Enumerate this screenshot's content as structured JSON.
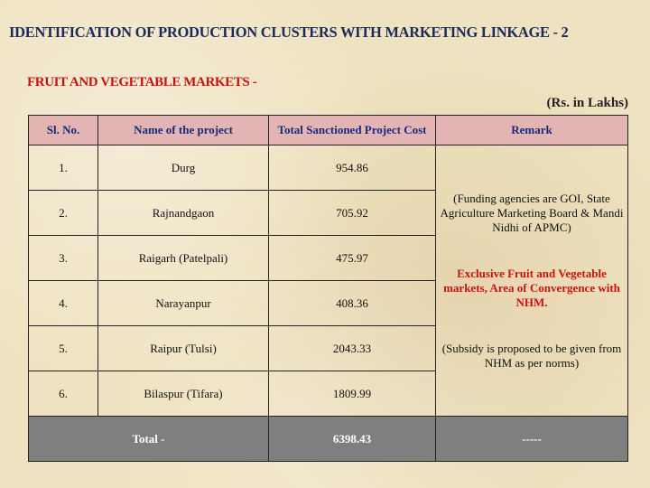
{
  "title": "IDENTIFICATION OF PRODUCTION CLUSTERS WITH MARKETING LINKAGE - 2",
  "subtitle": "FRUIT AND VEGETABLE MARKETS -",
  "unit": "(Rs. in Lakhs)",
  "headers": [
    "Sl. No.",
    "Name of  the project",
    "Total Sanctioned Project Cost",
    "Remark"
  ],
  "rows": [
    {
      "no": "1.",
      "name": "Durg",
      "cost": "954.86"
    },
    {
      "no": "2.",
      "name": "Rajnandgaon",
      "cost": "705.92"
    },
    {
      "no": "3.",
      "name": "Raigarh (Patelpali)",
      "cost": "475.97"
    },
    {
      "no": "4.",
      "name": "Narayanpur",
      "cost": "408.36"
    },
    {
      "no": "5.",
      "name": "Raipur (Tulsi)",
      "cost": "2043.33"
    },
    {
      "no": "6.",
      "name": "Bilaspur (Tifara)",
      "cost": "1809.99"
    }
  ],
  "remark": {
    "funding": "(Funding agencies are GOI, State Agriculture Marketing Board & Mandi Nidhi of APMC)",
    "exclusive": "Exclusive Fruit and Vegetable markets, Area of Convergence with NHM.",
    "subsidy": "(Subsidy is proposed to be given from NHM as per norms)"
  },
  "total": {
    "label": "Total -",
    "cost": "6398.43",
    "remark": "-----"
  }
}
